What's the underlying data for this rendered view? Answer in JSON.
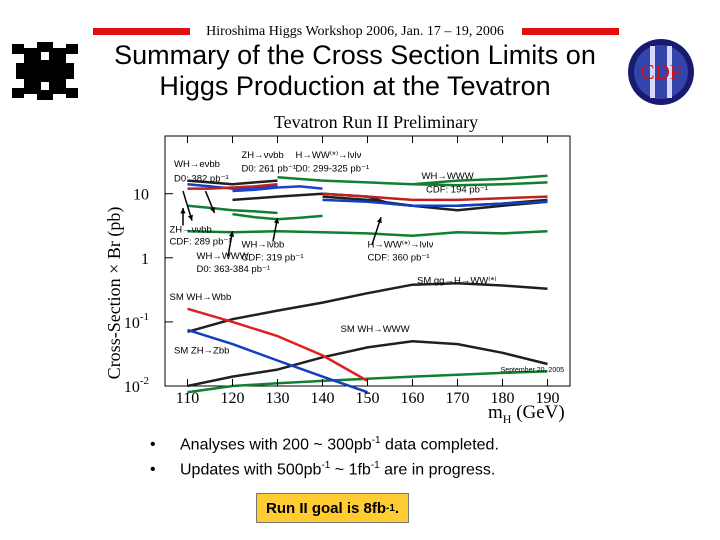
{
  "header": {
    "workshop": "Hiroshima Higgs Workshop 2006, Jan. 17 – 19, 2006",
    "title_line1": "Summary of the Cross Section Limits on",
    "title_line2": "Higgs Production at the Tevatron",
    "cdf_logo_text": "CDF",
    "accent_color": "#e01010"
  },
  "chart_data": {
    "type": "line",
    "title": "Tevatron Run II Preliminary",
    "xlabel": "m",
    "xlabel_sub": "H",
    "xlabel_unit": " (GeV)",
    "ylabel": "Cross-Section × Br (pb)",
    "xlim": [
      105,
      195
    ],
    "ylim_log10": [
      -2,
      1.9
    ],
    "y_scale": "log",
    "x_ticks": [
      110,
      120,
      130,
      140,
      150,
      160,
      170,
      180,
      190
    ],
    "y_ticks": [
      {
        "value": 10,
        "base": "10",
        "exp": ""
      },
      {
        "value": 1,
        "base": "1",
        "exp": ""
      },
      {
        "value": 0.1,
        "base": "10",
        "exp": "-1"
      },
      {
        "value": 0.01,
        "base": "10",
        "exp": "-2"
      }
    ],
    "date_label": "September 20, 2005",
    "series": [
      {
        "color": "#202020",
        "x": [
          110,
          115,
          120,
          125,
          130
        ],
        "y": [
          16,
          15,
          14,
          15,
          16
        ]
      },
      {
        "color": "#1040c0",
        "x": [
          110,
          115,
          120,
          125,
          130
        ],
        "y": [
          14,
          13,
          12,
          12.5,
          13.5
        ]
      },
      {
        "color": "#c02020",
        "x": [
          110,
          115,
          120,
          125,
          130
        ],
        "y": [
          12,
          12,
          12.5,
          13,
          14
        ]
      },
      {
        "color": "#108030",
        "x": [
          110,
          115,
          120,
          125,
          130
        ],
        "y": [
          6.5,
          6,
          5.5,
          5.3,
          5
        ]
      },
      {
        "color": "#108030",
        "x": [
          110,
          120,
          130,
          140,
          150,
          160,
          170,
          180,
          190
        ],
        "y": [
          2.6,
          2.5,
          2.6,
          2.5,
          2.4,
          2.2,
          2.5,
          2.4,
          2.6
        ]
      },
      {
        "color": "#202020",
        "x": [
          120,
          130,
          140,
          150,
          155,
          160,
          170,
          180,
          190
        ],
        "y": [
          8,
          9,
          10,
          9,
          7,
          6.5,
          5.5,
          6.5,
          7.5
        ]
      },
      {
        "color": "#2040d0",
        "x": [
          120,
          125,
          130,
          135,
          140
        ],
        "y": [
          11,
          11.5,
          12.5,
          13,
          12
        ]
      },
      {
        "color": "#108030",
        "x": [
          120,
          125,
          130,
          135,
          140
        ],
        "y": [
          4.8,
          4.3,
          4,
          4.2,
          4.5
        ]
      },
      {
        "color": "#108030",
        "x": [
          130,
          140,
          150,
          160,
          170,
          180,
          190
        ],
        "y": [
          18,
          16,
          15,
          14,
          16,
          17,
          19
        ]
      },
      {
        "color": "#202020",
        "x": [
          140,
          150,
          160,
          170,
          180,
          190
        ],
        "y": [
          9,
          8,
          6.5,
          6.5,
          7,
          8
        ]
      },
      {
        "color": "#1040c0",
        "x": [
          140,
          150,
          160,
          170,
          180,
          190
        ],
        "y": [
          8,
          7.5,
          6.5,
          6.5,
          7,
          7.5
        ]
      },
      {
        "color": "#c02020",
        "x": [
          140,
          150,
          160,
          170,
          180,
          190
        ],
        "y": [
          10,
          9,
          8,
          8,
          8.5,
          9
        ]
      },
      {
        "color": "#108030",
        "x": [
          160,
          170,
          180,
          190
        ],
        "y": [
          14,
          13.5,
          14,
          15
        ]
      },
      {
        "color": "#202020",
        "x": [
          110,
          120,
          130,
          140,
          150,
          160,
          170,
          180,
          190
        ],
        "y": [
          0.07,
          0.11,
          0.15,
          0.2,
          0.28,
          0.38,
          0.4,
          0.37,
          0.33
        ]
      },
      {
        "color": "#202020",
        "x": [
          110,
          120,
          130,
          140,
          150,
          160,
          170,
          180,
          190
        ],
        "y": [
          0.01,
          0.014,
          0.018,
          0.028,
          0.04,
          0.05,
          0.045,
          0.033,
          0.022
        ]
      },
      {
        "color": "#108030",
        "x": [
          110,
          120,
          130,
          140,
          150,
          160,
          170,
          180,
          190
        ],
        "y": [
          0.008,
          0.01,
          0.011,
          0.012,
          0.013,
          0.014,
          0.015,
          0.016,
          0.017
        ]
      },
      {
        "color": "#e02020",
        "x": [
          110,
          120,
          130,
          140,
          150
        ],
        "y": [
          0.16,
          0.1,
          0.06,
          0.03,
          0.012
        ]
      },
      {
        "color": "#1040c0",
        "x": [
          110,
          120,
          130,
          140,
          150
        ],
        "y": [
          0.075,
          0.045,
          0.025,
          0.014,
          0.008
        ]
      }
    ],
    "annotations": [
      {
        "text": "WH→eνbb",
        "x": 107,
        "y": 26
      },
      {
        "text": "D0: 382 pb⁻¹",
        "x": 107,
        "y": 15.5
      },
      {
        "text": "ZH→ννbb",
        "x": 122,
        "y": 36
      },
      {
        "text": "D0: 261 pb⁻¹",
        "x": 122,
        "y": 22
      },
      {
        "text": "H→WW⁽*⁾→lνlν",
        "x": 134,
        "y": 36
      },
      {
        "text": "D0: 299-325 pb⁻¹",
        "x": 134,
        "y": 22
      },
      {
        "text": "WH→WWW",
        "x": 162,
        "y": 17
      },
      {
        "text": "CDF: 194 pb⁻¹",
        "x": 163,
        "y": 10.5
      },
      {
        "text": "ZH→ννbb",
        "x": 106,
        "y": 2.5
      },
      {
        "text": "CDF: 289 pb⁻¹",
        "x": 106,
        "y": 1.6
      },
      {
        "text": "WH→lνbb",
        "x": 122,
        "y": 1.45
      },
      {
        "text": "CDF: 319 pb⁻¹",
        "x": 122,
        "y": 0.9
      },
      {
        "text": "WH→WWW",
        "x": 112,
        "y": 0.95
      },
      {
        "text": "D0: 363-384 pb⁻¹",
        "x": 112,
        "y": 0.6
      },
      {
        "text": "H→WW⁽*⁾→lνlν",
        "x": 150,
        "y": 1.45
      },
      {
        "text": "CDF: 360 pb⁻¹",
        "x": 150,
        "y": 0.9
      },
      {
        "text": "SM WH→Wbb",
        "x": 106,
        "y": 0.22
      },
      {
        "text": "SM gg→H→WW⁽*⁾",
        "x": 161,
        "y": 0.4
      },
      {
        "text": "SM WH→WWW",
        "x": 144,
        "y": 0.07
      },
      {
        "text": "SM ZH→Zbb",
        "x": 107,
        "y": 0.032
      }
    ],
    "arrows": [
      {
        "x1": 109,
        "y1": 11,
        "x2": 111,
        "y2": 3.8
      },
      {
        "x1": 114,
        "y1": 11,
        "x2": 116,
        "y2": 5
      },
      {
        "x1": 109,
        "y1": 3.2,
        "x2": 109,
        "y2": 6
      },
      {
        "x1": 119,
        "y1": 1.05,
        "x2": 120,
        "y2": 2.6
      },
      {
        "x1": 129,
        "y1": 1.8,
        "x2": 130,
        "y2": 4.2
      },
      {
        "x1": 151,
        "y1": 1.6,
        "x2": 153,
        "y2": 4.3
      }
    ]
  },
  "bullets": [
    {
      "pre": "Analyses with 200 ~ 300pb",
      "sup1": "-1",
      "post": " data completed."
    },
    {
      "pre": "Updates with 500pb",
      "sup1": "-1",
      "mid": " ~ 1fb",
      "sup2": "-1",
      "post": " are in progress."
    }
  ],
  "bullet_symbol": "•",
  "goal": {
    "pre": "Run II goal is 8fb",
    "sup": "-1",
    "post": ".",
    "background": "#ffcc33"
  }
}
